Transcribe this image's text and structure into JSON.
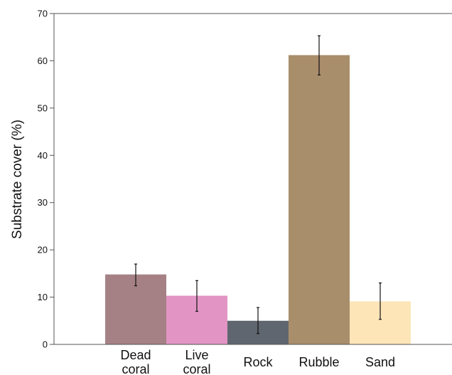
{
  "chart_data": {
    "type": "bar",
    "title": "",
    "xlabel": "",
    "ylabel": "Substrate cover (%)",
    "ylim": [
      0,
      70
    ],
    "yticks": [
      0,
      10,
      20,
      30,
      40,
      50,
      60,
      70
    ],
    "grid": false,
    "legend": "none",
    "categories": [
      [
        "Dead",
        "coral"
      ],
      [
        "Live",
        "coral"
      ],
      [
        "Rock"
      ],
      [
        "Rubble"
      ],
      [
        "Sand"
      ]
    ],
    "values": [
      14.8,
      10.3,
      5.0,
      61.2,
      9.1
    ],
    "error_low": [
      12.4,
      7.0,
      2.3,
      57.0,
      5.3
    ],
    "error_high": [
      17.0,
      13.5,
      7.8,
      65.3,
      13.0
    ],
    "colors": [
      "#A58185",
      "#E295C4",
      "#606670",
      "#A98E6C",
      "#FDE5B8"
    ]
  }
}
